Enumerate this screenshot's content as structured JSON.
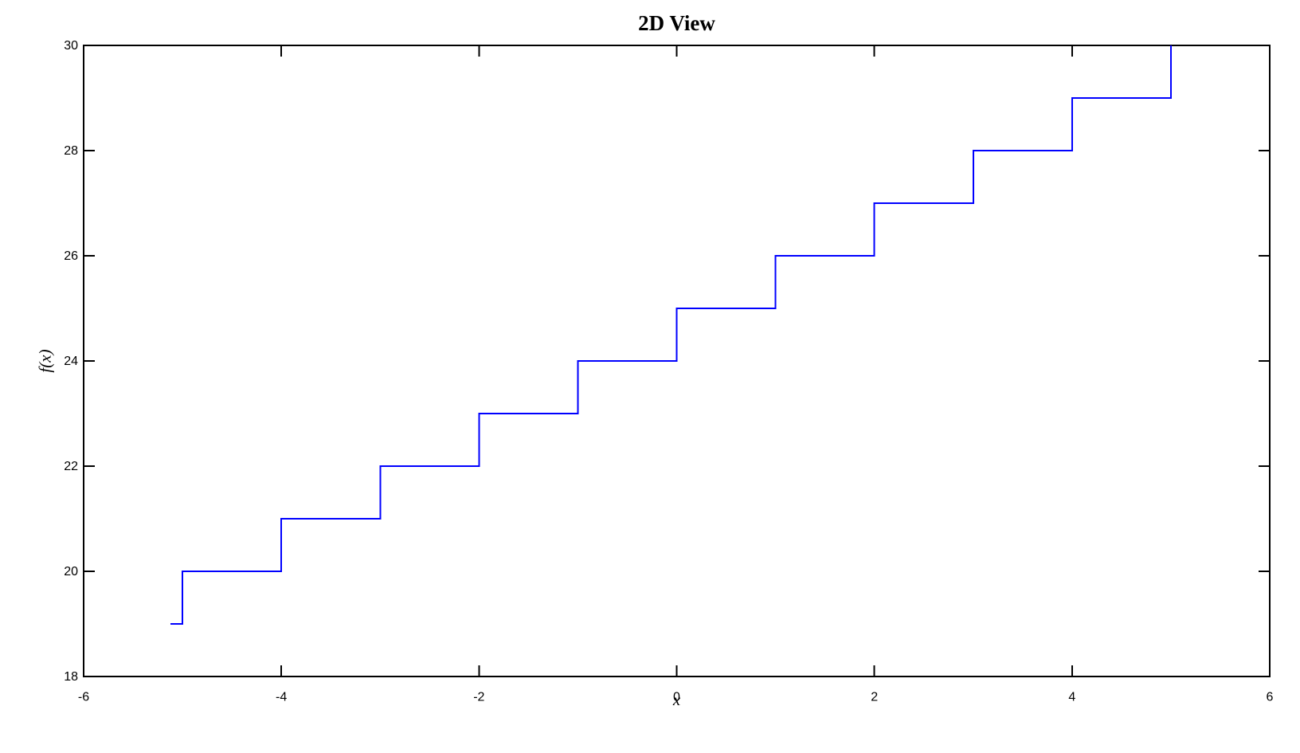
{
  "figure": {
    "background_color": "#ffffff",
    "axis_color": "#000000"
  },
  "chart_data": {
    "type": "line",
    "title": "2D View",
    "xlabel": "x",
    "ylabel": "f(x)",
    "xlim": [
      -6,
      6
    ],
    "ylim": [
      18,
      30
    ],
    "xticks": [
      -6,
      -4,
      -2,
      0,
      2,
      4,
      6
    ],
    "yticks": [
      18,
      20,
      22,
      24,
      26,
      28,
      30
    ],
    "grid": false,
    "legend": false,
    "box": true,
    "line_color": "#0000ff",
    "series": [
      {
        "points": [
          [
            -5.12,
            19
          ],
          [
            -5,
            19
          ],
          [
            -5,
            20
          ],
          [
            -4,
            20
          ],
          [
            -4,
            21
          ],
          [
            -3,
            21
          ],
          [
            -3,
            22
          ],
          [
            -2,
            22
          ],
          [
            -2,
            23
          ],
          [
            -1,
            23
          ],
          [
            -1,
            24
          ],
          [
            0,
            24
          ],
          [
            0,
            25
          ],
          [
            1,
            25
          ],
          [
            1,
            26
          ],
          [
            2,
            26
          ],
          [
            2,
            27
          ],
          [
            3,
            27
          ],
          [
            3,
            28
          ],
          [
            4,
            28
          ],
          [
            4,
            29
          ],
          [
            5,
            29
          ],
          [
            5,
            30
          ]
        ]
      }
    ]
  }
}
